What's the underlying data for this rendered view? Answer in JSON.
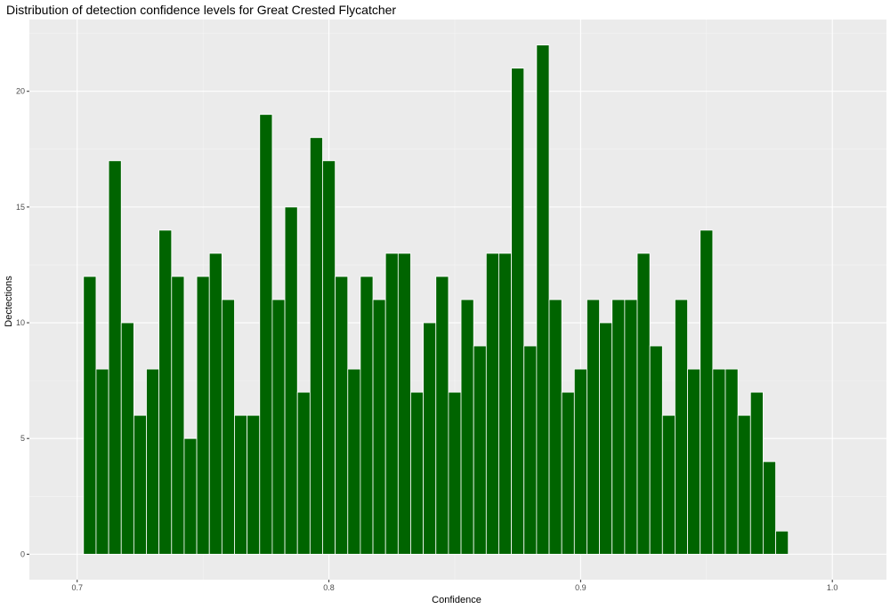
{
  "chart_data": {
    "type": "bar",
    "title": "Distribution of detection confidence levels for Great Crested Flycatcher",
    "xlabel": "Confidence",
    "ylabel": "Dectections",
    "xlim": [
      0.681,
      1.0215
    ],
    "ylim": [
      -1.1,
      23.1
    ],
    "bin_width": 0.005,
    "x_ticks": [
      {
        "value": 0.7,
        "label": "0.7"
      },
      {
        "value": 0.8,
        "label": "0.8"
      },
      {
        "value": 0.9,
        "label": "0.9"
      },
      {
        "value": 1.0,
        "label": "1.0"
      }
    ],
    "y_ticks": [
      {
        "value": 0,
        "label": "0"
      },
      {
        "value": 5,
        "label": "5"
      },
      {
        "value": 10,
        "label": "10"
      },
      {
        "value": 15,
        "label": "15"
      },
      {
        "value": 20,
        "label": "20"
      }
    ],
    "x": [
      0.705,
      0.71,
      0.715,
      0.72,
      0.725,
      0.73,
      0.735,
      0.74,
      0.745,
      0.75,
      0.755,
      0.76,
      0.765,
      0.77,
      0.775,
      0.78,
      0.785,
      0.79,
      0.795,
      0.8,
      0.805,
      0.81,
      0.815,
      0.82,
      0.825,
      0.83,
      0.835,
      0.84,
      0.845,
      0.85,
      0.855,
      0.86,
      0.865,
      0.87,
      0.875,
      0.88,
      0.885,
      0.89,
      0.895,
      0.9,
      0.905,
      0.91,
      0.915,
      0.92,
      0.925,
      0.93,
      0.935,
      0.94,
      0.945,
      0.95,
      0.955,
      0.96,
      0.965,
      0.97,
      0.975,
      0.98
    ],
    "values": [
      12,
      8,
      17,
      10,
      6,
      8,
      14,
      12,
      5,
      12,
      13,
      11,
      6,
      6,
      19,
      11,
      15,
      7,
      18,
      17,
      12,
      8,
      12,
      11,
      13,
      13,
      7,
      10,
      12,
      7,
      11,
      9,
      13,
      13,
      21,
      9,
      22,
      11,
      7,
      8,
      11,
      10,
      11,
      11,
      13,
      9,
      6,
      11,
      8,
      14,
      8,
      8,
      6,
      7,
      4,
      1
    ],
    "grid": true,
    "colors": {
      "bar_fill": "#006400",
      "bar_outline": "#ffffff",
      "panel_background": "#ebebeb",
      "grid_major": "#ffffff",
      "grid_minor": "#f5f5f5"
    }
  }
}
